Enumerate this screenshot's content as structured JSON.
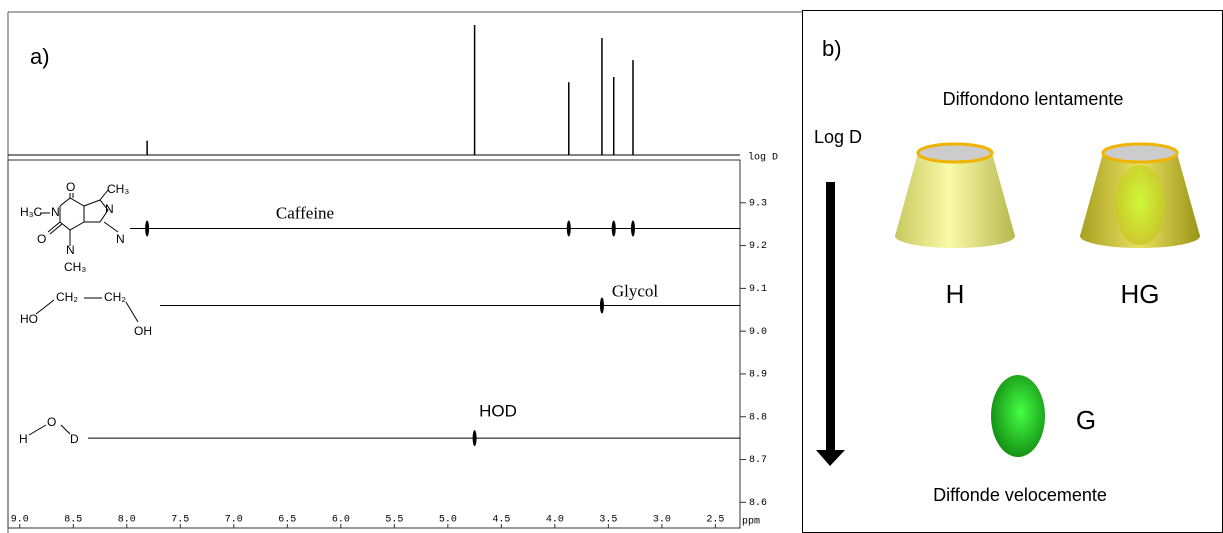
{
  "chart_data": {
    "type": "dosy",
    "panel_label": "a)",
    "x_label": "ppm",
    "y_label": "log D",
    "xlim": [
      9.11,
      2.27
    ],
    "xticks": [
      {
        "value": 9,
        "label": "9.0"
      },
      8.5,
      {
        "value": 8,
        "label": "8.0"
      },
      7.5,
      {
        "value": 7,
        "label": "7.0"
      },
      6.5,
      {
        "value": 6,
        "label": "6.0"
      },
      5.5,
      {
        "value": 5,
        "label": "5.0"
      },
      4.5,
      {
        "value": 4,
        "label": "4.0"
      },
      3.5,
      {
        "value": 3,
        "label": "3.0"
      },
      2.5
    ],
    "ylim": [
      8.54,
      9.4
    ],
    "yticks": [
      9.3,
      9.2,
      9.1,
      {
        "value": 9,
        "label": "9.0"
      },
      8.9,
      8.8,
      8.7,
      8.6
    ],
    "spectrum": [
      {
        "ppm": 7.81,
        "intensity": 11
      },
      {
        "ppm": 4.75,
        "intensity": 100
      },
      {
        "ppm": 3.87,
        "intensity": 56
      },
      {
        "ppm": 3.56,
        "intensity": 90
      },
      {
        "ppm": 3.45,
        "intensity": 60
      },
      {
        "ppm": 3.27,
        "intensity": 73
      }
    ],
    "components": [
      {
        "name": "Caffeine",
        "log_d": 9.24,
        "peaks": [
          7.81,
          3.87,
          3.45,
          3.27
        ]
      },
      {
        "name": "Glycol",
        "log_d": 9.06,
        "peaks": [
          3.56
        ]
      },
      {
        "name": "HOD",
        "log_d": 8.75,
        "peaks": [
          4.75
        ]
      }
    ]
  },
  "structures": {
    "caffeine": [
      "H₃C",
      "N",
      "O",
      "O",
      "N",
      "CH₃",
      "N",
      "CH₃",
      "N"
    ],
    "glycol": [
      "HO",
      "CH₂",
      "CH₂",
      "OH"
    ],
    "water": [
      "H",
      "O",
      "D"
    ]
  },
  "panel_b": {
    "label": "b)",
    "top_text": "Diffondono lentamente",
    "axis_label": "Log D",
    "host": "H",
    "complex": "HG",
    "guest": "G",
    "bottom_text": "Diffonde velocemente"
  }
}
